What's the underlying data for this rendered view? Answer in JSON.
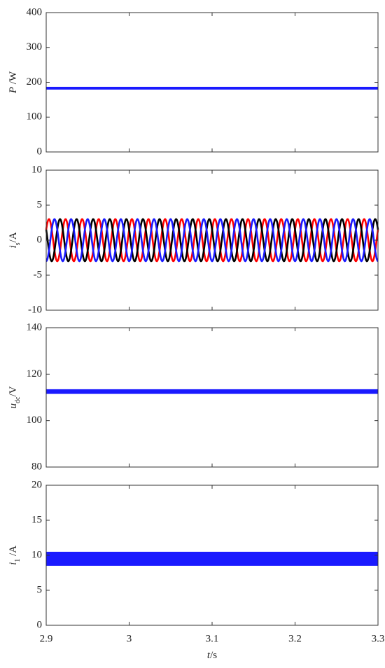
{
  "chart_data": [
    {
      "type": "band",
      "ylabel": [
        {
          "text": "P",
          "style": "italic"
        },
        {
          "text": " /W",
          "style": "normal"
        }
      ],
      "xlim": [
        2.9,
        3.3
      ],
      "xticks": [
        2.9,
        3,
        3.1,
        3.2,
        3.3
      ],
      "ylim": [
        0,
        400
      ],
      "yticks": [
        0,
        100,
        200,
        300,
        400
      ],
      "series": [
        {
          "color": "#1a1aff",
          "center": 183,
          "spread": 4
        }
      ]
    },
    {
      "type": "sine",
      "ylabel": [
        {
          "text": "i",
          "style": "italic"
        },
        {
          "text": "s",
          "style": "sub"
        },
        {
          "text": "/A",
          "style": "normal"
        }
      ],
      "xlim": [
        2.9,
        3.3
      ],
      "xticks": [
        2.9,
        3,
        3.1,
        3.2,
        3.3
      ],
      "ylim": [
        -10,
        10
      ],
      "yticks": [
        -10,
        -5,
        0,
        5,
        10
      ],
      "series": [
        {
          "color": "#ff0000",
          "amplitude": 3,
          "frequency": 50,
          "phase": 30
        },
        {
          "color": "#000000",
          "amplitude": 3,
          "frequency": 50,
          "phase": 150
        },
        {
          "color": "#1a1aff",
          "amplitude": 3,
          "frequency": 50,
          "phase": -90
        }
      ]
    },
    {
      "type": "band",
      "ylabel": [
        {
          "text": "u",
          "style": "italic"
        },
        {
          "text": "dc",
          "style": "sub"
        },
        {
          "text": "/V",
          "style": "normal"
        }
      ],
      "xlim": [
        2.9,
        3.3
      ],
      "xticks": [
        2.9,
        3,
        3.1,
        3.2,
        3.3
      ],
      "ylim": [
        80,
        140
      ],
      "yticks": [
        80,
        100,
        120,
        140
      ],
      "series": [
        {
          "color": "#1a1aff",
          "center": 112.5,
          "spread": 1
        }
      ]
    },
    {
      "type": "band",
      "ylabel": [
        {
          "text": "i",
          "style": "italic"
        },
        {
          "text": "1",
          "style": "sub"
        },
        {
          "text": " /A",
          "style": "normal"
        }
      ],
      "xlim": [
        2.9,
        3.3
      ],
      "xticks": [
        2.9,
        3,
        3.1,
        3.2,
        3.3
      ],
      "ylim": [
        0,
        20
      ],
      "yticks": [
        0,
        5,
        10,
        15,
        20
      ],
      "xlabel": [
        {
          "text": "t",
          "style": "italic"
        },
        {
          "text": "/s",
          "style": "normal"
        }
      ],
      "series": [
        {
          "color": "#1a1aff",
          "center": 9.5,
          "spread": 1
        }
      ]
    }
  ]
}
